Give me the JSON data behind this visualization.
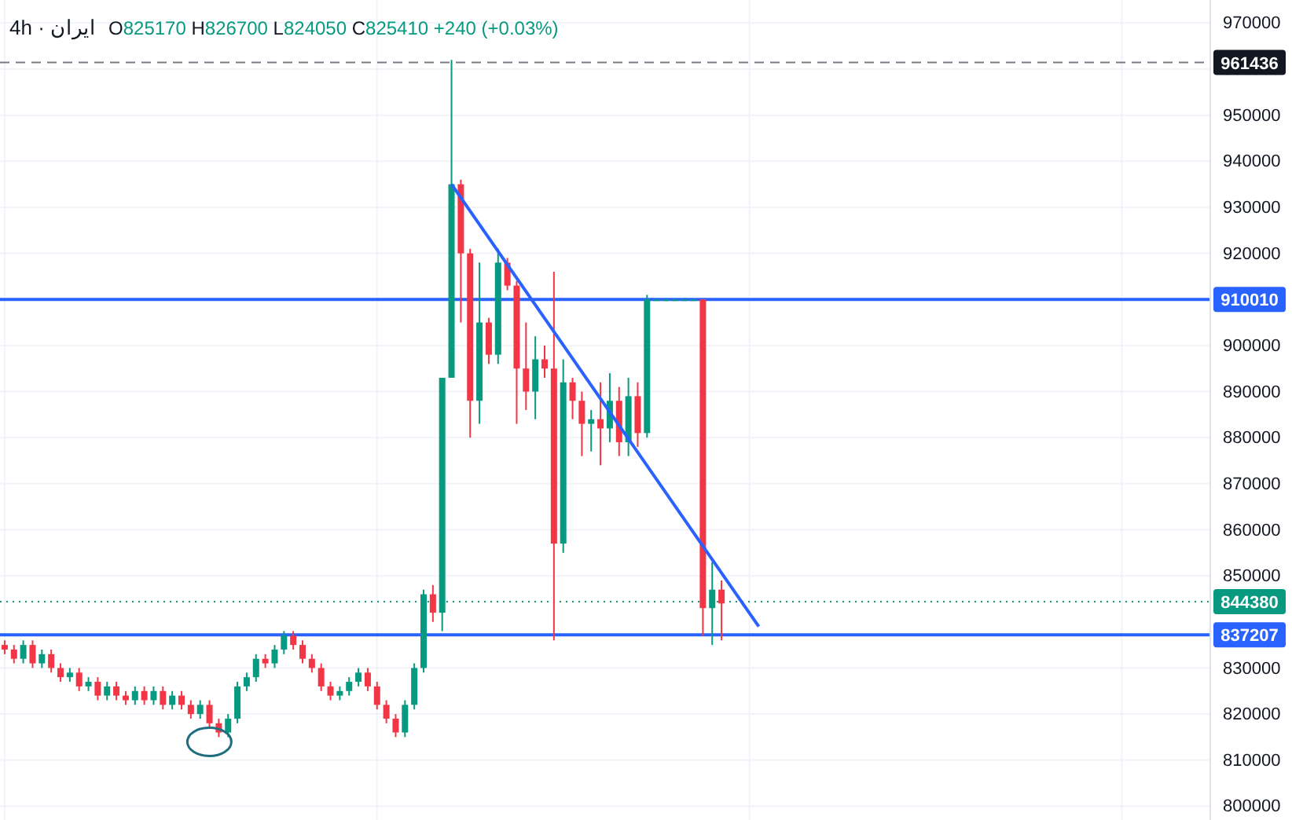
{
  "chart_data": {
    "type": "candlestick",
    "title": "4h · ایران",
    "subtitle": "O825170 H826700 L824050 C825410 +240 (+0.03%)",
    "categories": [
      null,
      null,
      null,
      null,
      null,
      null,
      null,
      null,
      null,
      null,
      null,
      null,
      null,
      null,
      null,
      null,
      null,
      null,
      null,
      null,
      null,
      null,
      null,
      null,
      null,
      null,
      null,
      null,
      null,
      null,
      null,
      null,
      null,
      null,
      null,
      null,
      null,
      null,
      null,
      null,
      null,
      null,
      null,
      null,
      null,
      null,
      null,
      null,
      null,
      null,
      null,
      null,
      null,
      null,
      null,
      null,
      null,
      null,
      null,
      null,
      null,
      null,
      null,
      null,
      null,
      null,
      null,
      null,
      null,
      null,
      null,
      null,
      null,
      null,
      null,
      null,
      null,
      null,
      null,
      null,
      null,
      null,
      null,
      null,
      null,
      null,
      null,
      null,
      null,
      null,
      null,
      null,
      null,
      null,
      null,
      null,
      null,
      null,
      null,
      null,
      null,
      null,
      null,
      null,
      null,
      null,
      null,
      null,
      null,
      null,
      null,
      null,
      null,
      null,
      null,
      null,
      null,
      null,
      null,
      null,
      null,
      null,
      null,
      null,
      null,
      null,
      null,
      null,
      null,
      null
    ],
    "ohlc": [
      [
        835000,
        836000,
        833000,
        834000
      ],
      [
        834000,
        835000,
        831000,
        832000
      ],
      [
        832000,
        836000,
        831000,
        835000
      ],
      [
        835000,
        836000,
        830000,
        831000
      ],
      [
        831000,
        834000,
        830000,
        833000
      ],
      [
        833000,
        834000,
        829000,
        830000
      ],
      [
        830000,
        831000,
        827000,
        828000
      ],
      [
        828000,
        830000,
        827000,
        829000
      ],
      [
        829000,
        830000,
        825000,
        826000
      ],
      [
        826000,
        828000,
        825000,
        827000
      ],
      [
        827000,
        828000,
        823000,
        824000
      ],
      [
        824000,
        827000,
        823000,
        826000
      ],
      [
        826000,
        827000,
        823000,
        824000
      ],
      [
        824000,
        825000,
        822000,
        823000
      ],
      [
        823000,
        826000,
        822000,
        825000
      ],
      [
        825000,
        826000,
        822000,
        823000
      ],
      [
        823000,
        826000,
        822000,
        825000
      ],
      [
        825000,
        826000,
        821000,
        822000
      ],
      [
        822000,
        825000,
        821000,
        824000
      ],
      [
        824000,
        825000,
        821000,
        822000
      ],
      [
        822000,
        823000,
        819000,
        820000
      ],
      [
        820000,
        823000,
        819000,
        822000
      ],
      [
        822000,
        823000,
        817000,
        818000
      ],
      [
        818000,
        819000,
        815000,
        816000
      ],
      [
        816000,
        820000,
        815000,
        819000
      ],
      [
        819000,
        827000,
        818000,
        826000
      ],
      [
        826000,
        829000,
        825000,
        828000
      ],
      [
        828000,
        833000,
        827000,
        832000
      ],
      [
        832000,
        833000,
        830000,
        831000
      ],
      [
        831000,
        835000,
        830000,
        834000
      ],
      [
        834000,
        838000,
        833000,
        837000
      ],
      [
        837000,
        838000,
        834000,
        835000
      ],
      [
        835000,
        836000,
        831000,
        832000
      ],
      [
        832000,
        833000,
        829000,
        830000
      ],
      [
        830000,
        831000,
        825000,
        826000
      ],
      [
        826000,
        827000,
        823000,
        824000
      ],
      [
        824000,
        826000,
        823000,
        825000
      ],
      [
        825000,
        828000,
        824000,
        827000
      ],
      [
        827000,
        830000,
        826000,
        829000
      ],
      [
        829000,
        830000,
        825000,
        826000
      ],
      [
        826000,
        827000,
        821000,
        822000
      ],
      [
        822000,
        823000,
        818000,
        819000
      ],
      [
        819000,
        820000,
        815000,
        816000
      ],
      [
        816000,
        823000,
        815000,
        822000
      ],
      [
        822000,
        831000,
        821000,
        830000
      ],
      [
        830000,
        847000,
        829000,
        846000
      ],
      [
        846000,
        848000,
        840000,
        842000
      ],
      [
        842000,
        893000,
        838000,
        893000
      ],
      [
        893000,
        962000,
        893000,
        935000
      ],
      [
        935000,
        936000,
        905000,
        920000
      ],
      [
        920000,
        921000,
        880000,
        888000
      ],
      [
        888000,
        918000,
        883000,
        905000
      ],
      [
        905000,
        906000,
        896000,
        898000
      ],
      [
        898000,
        921000,
        896000,
        918000
      ],
      [
        918000,
        919000,
        912000,
        913000
      ],
      [
        913000,
        914000,
        883000,
        895000
      ],
      [
        895000,
        905000,
        886000,
        890000
      ],
      [
        890000,
        902000,
        884000,
        897000
      ],
      [
        897000,
        900000,
        893000,
        895000
      ],
      [
        895000,
        916000,
        836000,
        857000
      ],
      [
        857000,
        897000,
        855000,
        892000
      ],
      [
        892000,
        893000,
        884000,
        888000
      ],
      [
        888000,
        890000,
        876000,
        883000
      ],
      [
        883000,
        886000,
        877000,
        884000
      ],
      [
        884000,
        892000,
        874000,
        882000
      ],
      [
        882000,
        894000,
        879000,
        888000
      ],
      [
        888000,
        891000,
        876000,
        879000
      ],
      [
        879000,
        893000,
        876000,
        889000
      ],
      [
        889000,
        892000,
        878000,
        881000
      ],
      [
        881000,
        911000,
        880000,
        910000
      ],
      [
        910000,
        910000,
        910000,
        910000
      ],
      [
        910000,
        910000,
        910000,
        910000
      ],
      [
        910000,
        910000,
        910000,
        910000
      ],
      [
        910000,
        910000,
        910000,
        910000
      ],
      [
        910000,
        910000,
        910000,
        910000
      ],
      [
        910000,
        910000,
        837000,
        843000
      ],
      [
        843000,
        853000,
        835000,
        847000
      ],
      [
        847000,
        849000,
        836000,
        844000
      ],
      null,
      null,
      null,
      null,
      null,
      null,
      null,
      null,
      null,
      null,
      null,
      null,
      null,
      null,
      null,
      null,
      null,
      null,
      null,
      null,
      null,
      null,
      null,
      null,
      null,
      null,
      null,
      null,
      null,
      null,
      null,
      null,
      null,
      null,
      null,
      null,
      null,
      null,
      null,
      null,
      null,
      null,
      null,
      null,
      null,
      null,
      null,
      null,
      null,
      null,
      null,
      null
    ],
    "series": [
      {
        "type": "line",
        "values": [
          null,
          null,
          null,
          null,
          null,
          null,
          null,
          null,
          null,
          null,
          null,
          null,
          null,
          null,
          null,
          null,
          null,
          null,
          null,
          null,
          null,
          null,
          null,
          null,
          null,
          null,
          null,
          null,
          null,
          null,
          null,
          null,
          null,
          null,
          null,
          null,
          null,
          null,
          null,
          null,
          null,
          null,
          null,
          null,
          null,
          null,
          null,
          null,
          935000,
          null,
          null,
          null,
          null,
          null,
          null,
          null,
          null,
          null,
          null,
          null,
          null,
          null,
          null,
          null,
          null,
          null,
          null,
          null,
          null,
          null,
          null,
          null,
          null,
          null,
          null,
          null,
          null,
          null,
          null,
          null,
          null,
          839000,
          null,
          null,
          null,
          null,
          null,
          null,
          null,
          null,
          null,
          null,
          null,
          null,
          null,
          null,
          null,
          null,
          null,
          null,
          null,
          null,
          null,
          null,
          null,
          null,
          null,
          null,
          null,
          null,
          null,
          null,
          null,
          null,
          null,
          null,
          null,
          null,
          null,
          null,
          null,
          null,
          null,
          null,
          null,
          null,
          null,
          null,
          null,
          null
        ],
        "color": "#2962ff"
      }
    ],
    "ylim": [
      797000,
      975000
    ],
    "yticks": [
      800000,
      810000,
      820000,
      830000,
      850000,
      860000,
      870000,
      880000,
      890000,
      900000,
      920000,
      930000,
      940000,
      950000,
      960000,
      970000
    ],
    "tick_labels": "y",
    "grid": true,
    "ref_lines": [
      {
        "axis": "y",
        "value": 961436,
        "label": "961436",
        "color": "#787b86",
        "line_style": "dashed"
      },
      {
        "axis": "y",
        "value": 910010,
        "label": "910010",
        "color": "#2962ff",
        "line_style": "solid"
      },
      {
        "axis": "y",
        "value": 844380,
        "label": "844380",
        "color": "#089981",
        "line_style": "dotted"
      },
      {
        "axis": "y",
        "value": 837207,
        "label": "837207",
        "color": "#2962ff",
        "line_style": "solid"
      }
    ]
  }
}
